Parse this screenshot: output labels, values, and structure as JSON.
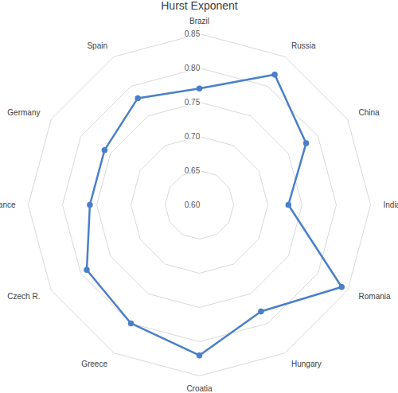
{
  "chart_data": {
    "type": "radar",
    "title": "Hurst Exponent",
    "categories": [
      "Brazil",
      "Russia",
      "China",
      "India",
      "Romania",
      "Hungary",
      "Croatia",
      "Greece",
      "Czech R.",
      "France",
      "Germany",
      "Spain"
    ],
    "values": [
      0.77,
      0.82,
      0.78,
      0.73,
      0.84,
      0.78,
      0.82,
      0.8,
      0.79,
      0.76,
      0.76,
      0.78
    ],
    "color": "#4a7fc9",
    "marker": "circle",
    "ylim": [
      0.6,
      0.85
    ],
    "yticks": [
      {
        "value": 0.6,
        "label": "0.60"
      },
      {
        "value": 0.65,
        "label": "0.65"
      },
      {
        "value": 0.7,
        "label": "0.70"
      },
      {
        "value": 0.75,
        "label": "0.75"
      },
      {
        "value": 0.8,
        "label": "0.80"
      },
      {
        "value": 0.85,
        "label": "0.85"
      }
    ],
    "grid": true
  }
}
